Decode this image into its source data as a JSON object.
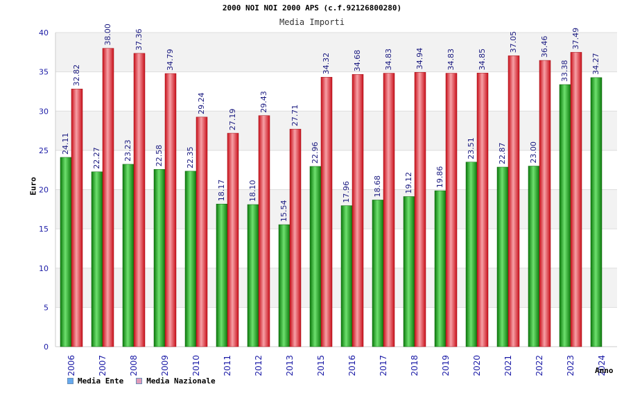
{
  "chart_data": {
    "type": "bar",
    "title": "2000 NOI NOI 2000 APS (c.f.92126800280)",
    "subtitle": "Media Importi",
    "xlabel": "Anno",
    "ylabel": "Euro",
    "ylim": [
      0,
      40
    ],
    "yticks": [
      0,
      5,
      10,
      15,
      20,
      25,
      30,
      35,
      40
    ],
    "grid": true,
    "legend_position": "bottom-left",
    "categories": [
      "2006",
      "2007",
      "2008",
      "2009",
      "2010",
      "2011",
      "2012",
      "2013",
      "2015",
      "2016",
      "2017",
      "2018",
      "2019",
      "2020",
      "2021",
      "2022",
      "2023",
      "2024"
    ],
    "series": [
      {
        "name": "Media Ente",
        "color": "#1fa51f",
        "legend_color": "#66aaee",
        "values": [
          24.11,
          22.27,
          23.23,
          22.58,
          22.35,
          18.17,
          18.1,
          15.54,
          22.96,
          17.96,
          18.68,
          19.12,
          19.86,
          23.51,
          22.87,
          23.0,
          33.38,
          34.27
        ],
        "labels": [
          "24.11",
          "22.27",
          "23.23",
          "22.58",
          "22.35",
          "18.17",
          "18.10",
          "15.54",
          "22.96",
          "17.96",
          "18.68",
          "19.12",
          "19.86",
          "23.51",
          "22.87",
          "23.00",
          "33.38",
          "34.27"
        ]
      },
      {
        "name": "Media Nazionale",
        "color": "#e8202a",
        "legend_color": "#e09ab8",
        "values": [
          32.82,
          38.0,
          37.36,
          34.79,
          29.24,
          27.19,
          29.43,
          27.71,
          34.32,
          34.68,
          34.83,
          34.94,
          34.83,
          34.85,
          37.05,
          36.46,
          37.49,
          null
        ],
        "labels": [
          "32.82",
          "38.00",
          "37.36",
          "34.79",
          "29.24",
          "27.19",
          "29.43",
          "27.71",
          "34.32",
          "34.68",
          "34.83",
          "34.94",
          "34.83",
          "34.85",
          "37.05",
          "36.46",
          "37.49",
          null
        ]
      }
    ]
  }
}
